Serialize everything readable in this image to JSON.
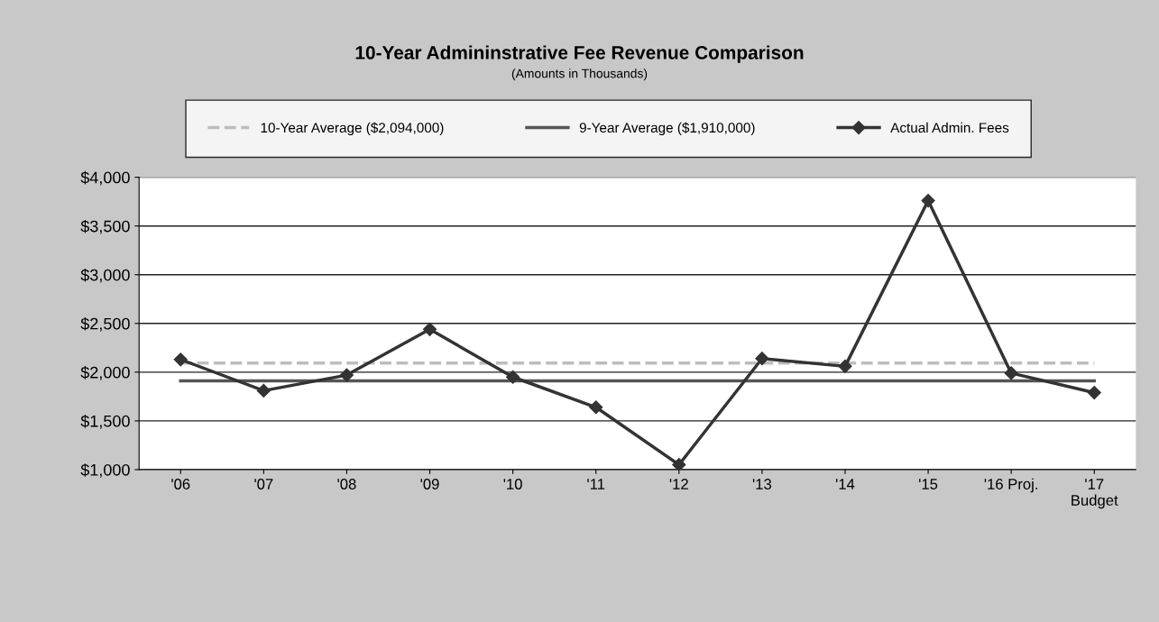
{
  "chart_data": {
    "type": "line",
    "title": "10-Year Admininstrative Fee Revenue Comparison",
    "subtitle": "(Amounts in Thousands)",
    "categories": [
      "'06",
      "'07",
      "'08",
      "'09",
      "'10",
      "'11",
      "'12",
      "'13",
      "'14",
      "'15",
      "'16 Proj.",
      "'17\nBudget"
    ],
    "series": [
      {
        "name": "10-Year Average ($2,094,000)",
        "color": "#bdbdbd",
        "line_style": "dashed",
        "marker": "none",
        "values": [
          2094,
          2094,
          2094,
          2094,
          2094,
          2094,
          2094,
          2094,
          2094,
          2094,
          2094,
          2094
        ]
      },
      {
        "name": "9-Year Average ($1,910,000)",
        "color": "#555555",
        "line_style": "solid",
        "marker": "none",
        "values": [
          1910,
          1910,
          1910,
          1910,
          1910,
          1910,
          1910,
          1910,
          1910,
          1910,
          1910,
          1910
        ]
      },
      {
        "name": "Actual Admin. Fees",
        "color": "#333333",
        "line_style": "solid",
        "marker": "diamond",
        "values": [
          2130,
          1810,
          1970,
          2440,
          1950,
          1640,
          1050,
          2140,
          2060,
          3760,
          1990,
          1790
        ]
      }
    ],
    "ylim": [
      1000,
      4000
    ],
    "yticks": [
      {
        "value": 1000,
        "label": "$1,000"
      },
      {
        "value": 1500,
        "label": "$1,500"
      },
      {
        "value": 2000,
        "label": "$2,000"
      },
      {
        "value": 2500,
        "label": "$2,500"
      },
      {
        "value": 3000,
        "label": "$3,000"
      },
      {
        "value": 3500,
        "label": "$3,500"
      },
      {
        "value": 4000,
        "label": "$4,000"
      }
    ],
    "grid": "y",
    "legend": "top"
  }
}
